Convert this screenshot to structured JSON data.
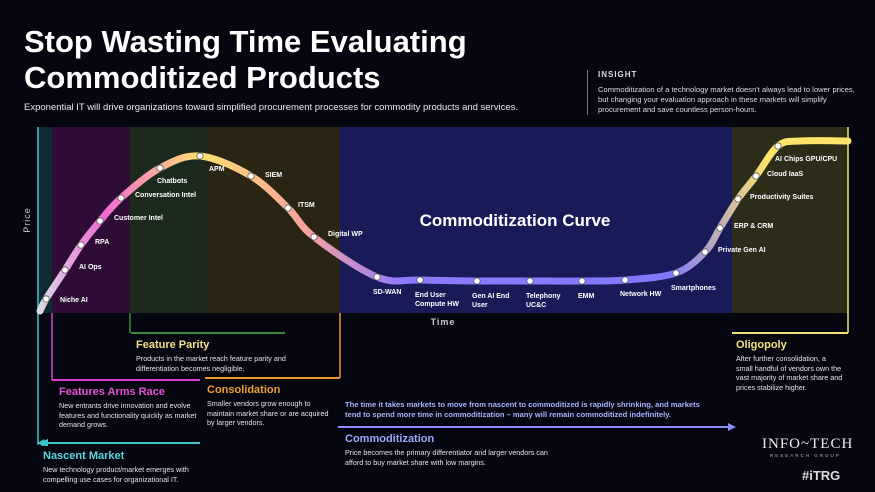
{
  "header": {
    "title": "Stop Wasting Time Evaluating Commoditized Products",
    "subtitle": "Exponential IT will drive organizations toward simplified procurement processes for commodity products and services."
  },
  "insight": {
    "label": "INSIGHT",
    "text": "Commoditization of a technology market doesn't always lead to lower prices, but changing your evaluation approach in these markets will simplify procurement and save countless person-hours."
  },
  "curve": {
    "title": "Commoditization Curve",
    "y_axis": "Price",
    "x_axis": "Time",
    "points": [
      "Niche AI",
      "AI Ops",
      "RPA",
      "Customer Intel",
      "Conversation Intel",
      "Chatbots",
      "APM",
      "SIEM",
      "ITSM",
      "Digital WP",
      "SD-WAN",
      "End User Compute HW",
      "Gen AI End User",
      "Telephony UC&C",
      "EMM",
      "Network HW",
      "Smartphones",
      "Private Gen AI",
      "ERP & CRM",
      "Productivity Suites",
      "Cloud IaaS",
      "AI Chips GPU/CPU"
    ]
  },
  "phases": [
    {
      "title": "Nascent Market",
      "text": "New technology product/market emerges with compelling use cases for organizational IT."
    },
    {
      "title": "Features Arms Race",
      "text": "New entrants drive innovation and evolve features and functionality quickly as market demand grows."
    },
    {
      "title": "Feature Parity",
      "text": "Products in the market reach feature parity and differentiation becomes negligible."
    },
    {
      "title": "Consolidation",
      "text": "Smaller vendors grow enough to maintain market share or are acquired by larger vendors."
    },
    {
      "title": "Commoditization",
      "text": "Price becomes the primary differentiator and larger vendors can afford to buy market share with low margins."
    },
    {
      "title": "Oligopoly",
      "text": "After further consolidation, a small handful of vendors own the vast majority of market share and prices stabilize higher."
    }
  ],
  "note": "The time it takes markets to move from nascent to commoditized is rapidly shrinking, and markets tend to spend more time in commoditization – many will remain commoditized indefinitely.",
  "logo": {
    "name": "Info~Tech",
    "tagline": "RESEARCH GROUP",
    "tag": "#iTRG"
  }
}
